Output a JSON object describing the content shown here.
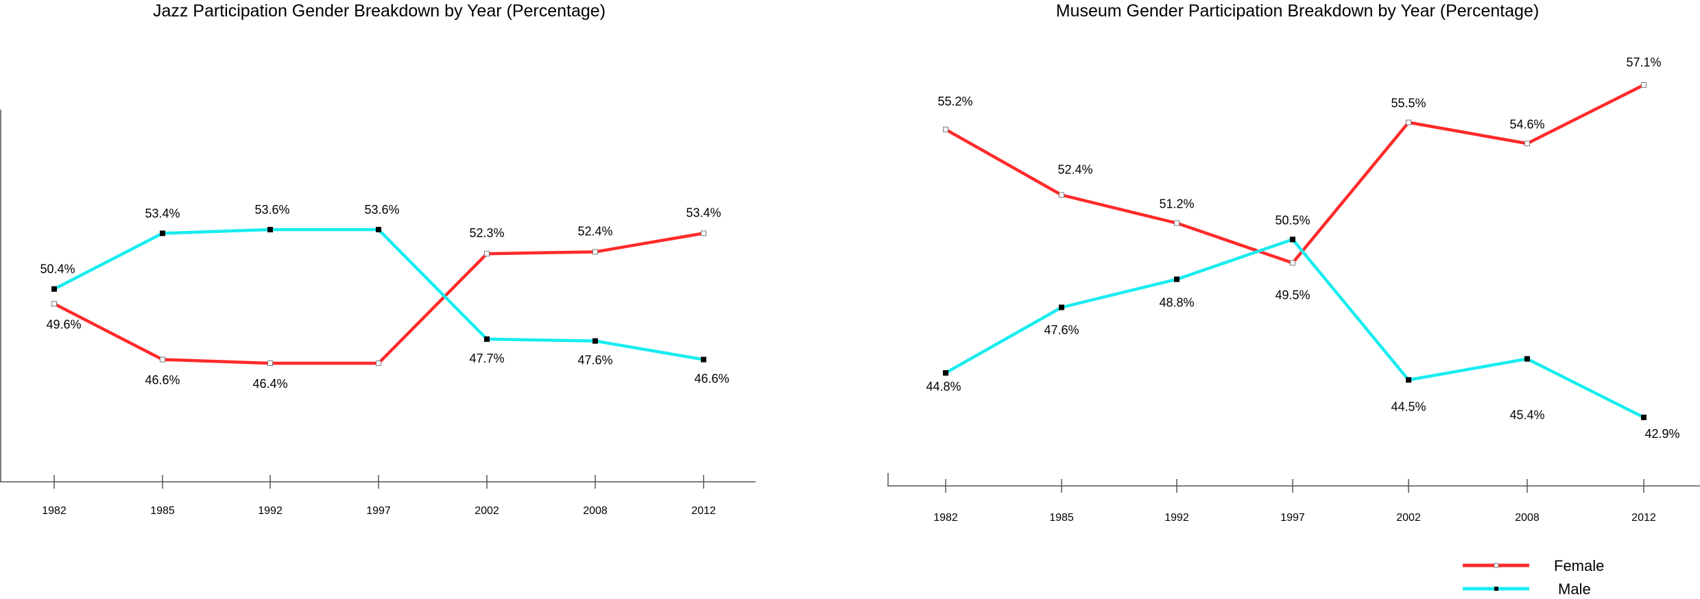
{
  "colors": {
    "female": "#ff2a2a",
    "male": "#18ecf0",
    "axis": "#555555"
  },
  "legend": {
    "items": [
      {
        "label": "Female",
        "color": "#ff2a2a",
        "marker": "open-square"
      },
      {
        "label": "Male",
        "color": "#18ecf0",
        "marker": "filled-square"
      }
    ],
    "placement": "bottom-right"
  },
  "chart_data": [
    {
      "type": "line",
      "title": "Jazz Participation Gender Breakdown by Year (Percentage)",
      "categories": [
        "1982",
        "1985",
        "1992",
        "1997",
        "2002",
        "2008",
        "2012"
      ],
      "series": [
        {
          "name": "Female",
          "values": [
            49.6,
            46.6,
            46.4,
            46.4,
            52.3,
            52.4,
            53.4
          ],
          "labels": [
            "49.6%",
            "46.6%",
            "46.4%",
            "",
            "52.3%",
            "52.4%",
            "53.4%"
          ]
        },
        {
          "name": "Male",
          "values": [
            50.4,
            53.4,
            53.6,
            53.6,
            47.7,
            47.6,
            46.6
          ],
          "labels": [
            "50.4%",
            "53.4%",
            "53.6%",
            "53.6%",
            "47.7%",
            "47.6%",
            "46.6%"
          ]
        }
      ],
      "grid": false
    },
    {
      "type": "line",
      "title": "Museum Gender  Participation Breakdown by Year (Percentage)",
      "categories": [
        "1982",
        "1985",
        "1992",
        "1997",
        "2002",
        "2008",
        "2012"
      ],
      "series": [
        {
          "name": "Female",
          "values": [
            55.2,
            52.4,
            51.2,
            49.5,
            55.5,
            54.6,
            57.1
          ],
          "labels": [
            "55.2%",
            "52.4%",
            "51.2%",
            "49.5%",
            "55.5%",
            "54.6%",
            "57.1%"
          ]
        },
        {
          "name": "Male",
          "values": [
            44.8,
            47.6,
            48.8,
            50.5,
            44.5,
            45.4,
            42.9
          ],
          "labels": [
            "44.8%",
            "47.6%",
            "48.8%",
            "50.5%",
            "44.5%",
            "45.4%",
            "42.9%"
          ]
        }
      ],
      "grid": false
    }
  ]
}
